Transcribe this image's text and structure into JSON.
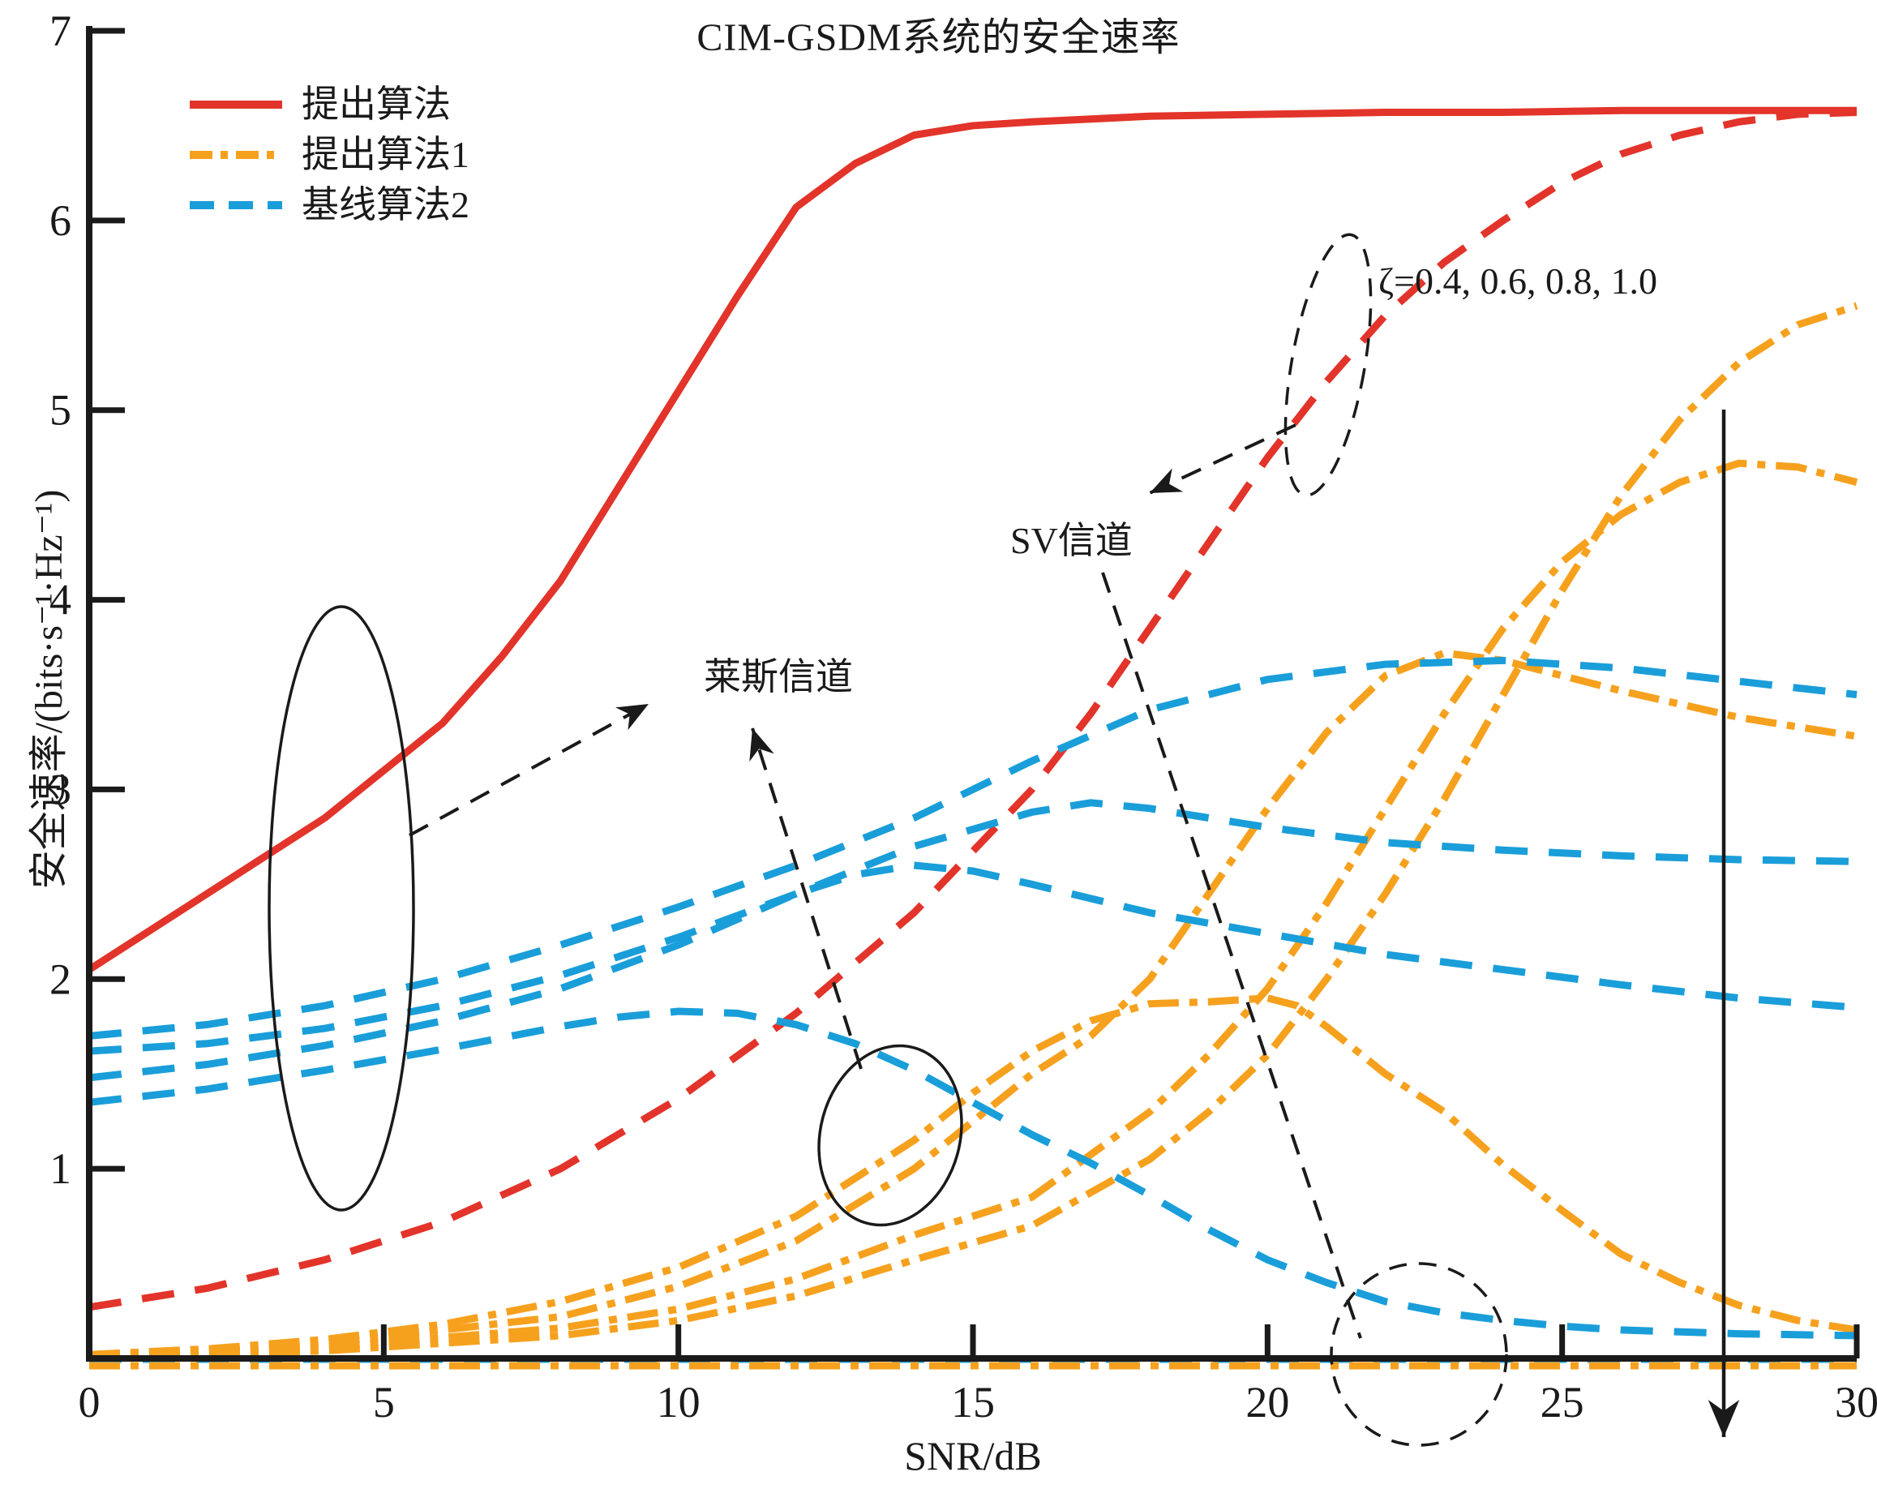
{
  "colors": {
    "red": "#e2342a",
    "orange": "#f6a11e",
    "blue": "#1a9ed9",
    "ink": "#1a1a1a"
  },
  "chart_data": {
    "type": "line",
    "title": "CIM-GSDM系统的安全速率",
    "xlabel": "SNR/dB",
    "ylabel": "安全速率/(bits·s⁻¹·Hz⁻¹)",
    "xlim": [
      0,
      30
    ],
    "ylim": [
      0,
      7
    ],
    "x_ticks": [
      0,
      5,
      10,
      15,
      20,
      25,
      30
    ],
    "y_ticks": [
      1,
      2,
      3,
      4,
      5,
      6,
      7
    ],
    "grid": false,
    "legend": {
      "position": "top-left",
      "entries": [
        {
          "label": "提出算法",
          "color": "red",
          "pattern": "solid"
        },
        {
          "label": "提出算法1",
          "color": "orange",
          "pattern": "dashdot"
        },
        {
          "label": "基线算法2",
          "color": "blue",
          "pattern": "dash"
        }
      ]
    },
    "annotations": {
      "rice_channel": "莱斯信道",
      "sv_channel": "SV信道",
      "zeta_values": "ζ=0.4, 0.6, 0.8, 1.0"
    },
    "series": [
      {
        "id": "proposed-rice",
        "legend_group": "提出算法",
        "channel": "莱斯信道",
        "color": "red",
        "pattern": "solid",
        "points": [
          [
            0,
            2.05
          ],
          [
            2,
            2.45
          ],
          [
            4,
            2.85
          ],
          [
            6,
            3.35
          ],
          [
            7,
            3.7
          ],
          [
            8,
            4.1
          ],
          [
            9,
            4.6
          ],
          [
            10,
            5.1
          ],
          [
            11,
            5.6
          ],
          [
            12,
            6.07
          ],
          [
            13,
            6.3
          ],
          [
            14,
            6.45
          ],
          [
            15,
            6.5
          ],
          [
            16,
            6.52
          ],
          [
            18,
            6.55
          ],
          [
            20,
            6.56
          ],
          [
            22,
            6.57
          ],
          [
            24,
            6.57
          ],
          [
            26,
            6.58
          ],
          [
            28,
            6.58
          ],
          [
            30,
            6.58
          ]
        ]
      },
      {
        "id": "proposed-sv",
        "legend_group": "提出算法",
        "channel": "SV信道",
        "color": "red",
        "pattern": "dash",
        "points": [
          [
            0,
            0.27
          ],
          [
            2,
            0.37
          ],
          [
            4,
            0.52
          ],
          [
            6,
            0.72
          ],
          [
            8,
            1.0
          ],
          [
            10,
            1.37
          ],
          [
            12,
            1.82
          ],
          [
            14,
            2.35
          ],
          [
            16,
            3.0
          ],
          [
            17,
            3.4
          ],
          [
            18,
            3.85
          ],
          [
            19,
            4.3
          ],
          [
            20,
            4.75
          ],
          [
            21,
            5.15
          ],
          [
            22,
            5.5
          ],
          [
            23,
            5.78
          ],
          [
            24,
            6.0
          ],
          [
            25,
            6.2
          ],
          [
            26,
            6.35
          ],
          [
            27,
            6.45
          ],
          [
            28,
            6.52
          ],
          [
            29,
            6.56
          ],
          [
            30,
            6.57
          ]
        ]
      },
      {
        "id": "alg1-rice-1",
        "legend_group": "提出算法1",
        "channel": "莱斯信道",
        "color": "orange",
        "pattern": "dashdot",
        "points": [
          [
            0,
            0.02
          ],
          [
            2,
            0.05
          ],
          [
            4,
            0.1
          ],
          [
            6,
            0.18
          ],
          [
            8,
            0.3
          ],
          [
            10,
            0.48
          ],
          [
            12,
            0.75
          ],
          [
            14,
            1.15
          ],
          [
            15,
            1.4
          ],
          [
            16,
            1.62
          ],
          [
            17,
            1.78
          ],
          [
            18,
            1.87
          ],
          [
            19,
            1.88
          ],
          [
            20,
            1.9
          ],
          [
            20.5,
            1.86
          ],
          [
            21,
            1.75
          ],
          [
            22,
            1.5
          ],
          [
            23,
            1.3
          ],
          [
            24,
            1.02
          ],
          [
            25,
            0.78
          ],
          [
            26,
            0.55
          ],
          [
            27,
            0.4
          ],
          [
            28,
            0.28
          ],
          [
            29,
            0.2
          ],
          [
            30,
            0.15
          ]
        ]
      },
      {
        "id": "alg1-rice-2",
        "legend_group": "提出算法1",
        "channel": "莱斯信道",
        "color": "orange",
        "pattern": "dashdot",
        "points": [
          [
            0,
            0.02
          ],
          [
            4,
            0.08
          ],
          [
            8,
            0.22
          ],
          [
            10,
            0.38
          ],
          [
            12,
            0.62
          ],
          [
            14,
            1.0
          ],
          [
            16,
            1.5
          ],
          [
            17,
            1.7
          ],
          [
            18,
            2.0
          ],
          [
            19,
            2.45
          ],
          [
            20,
            2.9
          ],
          [
            21,
            3.3
          ],
          [
            22,
            3.6
          ],
          [
            23,
            3.72
          ],
          [
            24,
            3.68
          ],
          [
            25,
            3.6
          ],
          [
            26,
            3.52
          ],
          [
            27,
            3.45
          ],
          [
            28,
            3.38
          ],
          [
            29,
            3.33
          ],
          [
            30,
            3.28
          ]
        ]
      },
      {
        "id": "alg1-rice-3",
        "legend_group": "提出算法1",
        "channel": "莱斯信道",
        "color": "orange",
        "pattern": "dashdot",
        "points": [
          [
            0,
            0.01
          ],
          [
            4,
            0.06
          ],
          [
            8,
            0.16
          ],
          [
            10,
            0.26
          ],
          [
            12,
            0.42
          ],
          [
            14,
            0.65
          ],
          [
            16,
            0.85
          ],
          [
            18,
            1.3
          ],
          [
            19,
            1.6
          ],
          [
            20,
            1.95
          ],
          [
            21,
            2.4
          ],
          [
            22,
            2.9
          ],
          [
            23,
            3.4
          ],
          [
            24,
            3.85
          ],
          [
            25,
            4.2
          ],
          [
            26,
            4.45
          ],
          [
            27,
            4.62
          ],
          [
            28,
            4.72
          ],
          [
            29,
            4.7
          ],
          [
            30,
            4.62
          ]
        ]
      },
      {
        "id": "alg1-rice-4",
        "legend_group": "提出算法1",
        "channel": "莱斯信道",
        "color": "orange",
        "pattern": "dashdot",
        "points": [
          [
            0,
            0.01
          ],
          [
            4,
            0.04
          ],
          [
            8,
            0.12
          ],
          [
            10,
            0.2
          ],
          [
            12,
            0.33
          ],
          [
            14,
            0.52
          ],
          [
            16,
            0.7
          ],
          [
            18,
            1.05
          ],
          [
            19,
            1.3
          ],
          [
            20,
            1.6
          ],
          [
            21,
            2.0
          ],
          [
            22,
            2.45
          ],
          [
            23,
            2.95
          ],
          [
            24,
            3.5
          ],
          [
            25,
            4.05
          ],
          [
            26,
            4.55
          ],
          [
            27,
            4.95
          ],
          [
            28,
            5.25
          ],
          [
            29,
            5.45
          ],
          [
            30,
            5.55
          ]
        ]
      },
      {
        "id": "baseline2-rice-1",
        "legend_group": "基线算法2",
        "channel": "莱斯信道",
        "color": "blue",
        "pattern": "dash",
        "points": [
          [
            0,
            1.7
          ],
          [
            2,
            1.76
          ],
          [
            4,
            1.86
          ],
          [
            6,
            2.0
          ],
          [
            8,
            2.18
          ],
          [
            10,
            2.38
          ],
          [
            12,
            2.6
          ],
          [
            14,
            2.85
          ],
          [
            16,
            3.15
          ],
          [
            18,
            3.42
          ],
          [
            20,
            3.58
          ],
          [
            22,
            3.66
          ],
          [
            24,
            3.68
          ],
          [
            26,
            3.64
          ],
          [
            28,
            3.57
          ],
          [
            30,
            3.5
          ]
        ]
      },
      {
        "id": "baseline2-rice-2",
        "legend_group": "基线算法2",
        "channel": "莱斯信道",
        "color": "blue",
        "pattern": "dash",
        "points": [
          [
            0,
            1.62
          ],
          [
            2,
            1.66
          ],
          [
            4,
            1.74
          ],
          [
            6,
            1.86
          ],
          [
            8,
            2.02
          ],
          [
            10,
            2.22
          ],
          [
            12,
            2.45
          ],
          [
            14,
            2.7
          ],
          [
            16,
            2.88
          ],
          [
            17,
            2.93
          ],
          [
            18,
            2.9
          ],
          [
            20,
            2.8
          ],
          [
            22,
            2.72
          ],
          [
            24,
            2.68
          ],
          [
            26,
            2.65
          ],
          [
            28,
            2.63
          ],
          [
            30,
            2.62
          ]
        ]
      },
      {
        "id": "baseline2-rice-3",
        "legend_group": "基线算法2",
        "channel": "莱斯信道",
        "color": "blue",
        "pattern": "dash",
        "points": [
          [
            0,
            1.48
          ],
          [
            2,
            1.55
          ],
          [
            4,
            1.65
          ],
          [
            6,
            1.78
          ],
          [
            8,
            1.95
          ],
          [
            10,
            2.18
          ],
          [
            12,
            2.45
          ],
          [
            13,
            2.55
          ],
          [
            14,
            2.6
          ],
          [
            15,
            2.57
          ],
          [
            16,
            2.5
          ],
          [
            18,
            2.35
          ],
          [
            20,
            2.24
          ],
          [
            22,
            2.13
          ],
          [
            24,
            2.05
          ],
          [
            26,
            1.97
          ],
          [
            28,
            1.9
          ],
          [
            30,
            1.85
          ]
        ]
      },
      {
        "id": "baseline2-rice-4",
        "legend_group": "基线算法2",
        "channel": "莱斯信道",
        "color": "blue",
        "pattern": "dash",
        "points": [
          [
            0,
            1.35
          ],
          [
            2,
            1.42
          ],
          [
            4,
            1.52
          ],
          [
            6,
            1.63
          ],
          [
            8,
            1.75
          ],
          [
            9,
            1.8
          ],
          [
            10,
            1.83
          ],
          [
            11,
            1.82
          ],
          [
            12,
            1.76
          ],
          [
            13,
            1.66
          ],
          [
            14,
            1.52
          ],
          [
            15,
            1.35
          ],
          [
            16,
            1.18
          ],
          [
            17,
            1.03
          ],
          [
            18,
            0.86
          ],
          [
            19,
            0.68
          ],
          [
            20,
            0.52
          ],
          [
            21,
            0.4
          ],
          [
            22,
            0.3
          ],
          [
            23,
            0.24
          ],
          [
            24,
            0.2
          ],
          [
            25,
            0.17
          ],
          [
            26,
            0.15
          ],
          [
            28,
            0.13
          ],
          [
            30,
            0.12
          ]
        ]
      },
      {
        "id": "baseline2-sv-zero",
        "legend_group": "基线算法2",
        "channel": "SV信道",
        "color": "blue",
        "pattern": "dash",
        "points": [
          [
            0,
            0
          ],
          [
            30,
            0
          ]
        ]
      },
      {
        "id": "alg1-sv-zero",
        "legend_group": "提出算法1",
        "channel": "SV信道",
        "color": "orange",
        "pattern": "dashdot",
        "points": [
          [
            0,
            0
          ],
          [
            30,
            0
          ]
        ]
      }
    ]
  }
}
